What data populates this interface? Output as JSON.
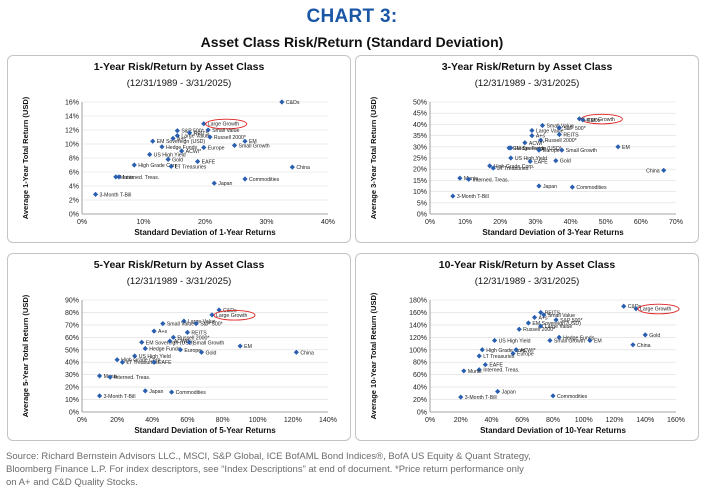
{
  "page": {
    "title": "CHART 3:",
    "subtitle": "Asset Class Risk/Return (Standard Deviation)"
  },
  "colors": {
    "marker": "#2a5fb0",
    "highlight": "#e02020",
    "title": "#1a56a6"
  },
  "chart_data": [
    {
      "type": "scatter",
      "title": "1-Year Risk/Return by Asset Class",
      "subtitle": "(12/31/1989 - 3/31/2025)",
      "xlabel": "Standard Deviation of  1-Year Returns",
      "ylabel": "Average 1-Year Total Return (USD)",
      "xlim": [
        0,
        40
      ],
      "ylim": [
        0,
        16
      ],
      "xticks": [
        "0%",
        "10%",
        "20%",
        "30%",
        "40%"
      ],
      "yticks": [
        "0%",
        "2%",
        "4%",
        "6%",
        "8%",
        "10%",
        "12%",
        "14%",
        "16%"
      ],
      "highlight": "Large Growth",
      "points": [
        {
          "label": "C&Ds",
          "x": 32.5,
          "y": 16.0
        },
        {
          "label": "Large Growth",
          "x": 19.8,
          "y": 12.9
        },
        {
          "label": "S&P 500*",
          "x": 15.5,
          "y": 11.9
        },
        {
          "label": "Small Value",
          "x": 20.5,
          "y": 12.0
        },
        {
          "label": "REITS",
          "x": 17.5,
          "y": 11.6
        },
        {
          "label": "Large Value",
          "x": 15.5,
          "y": 11.2
        },
        {
          "label": "A+s",
          "x": 14.8,
          "y": 10.8
        },
        {
          "label": "Russell 2000*",
          "x": 20.8,
          "y": 11.0
        },
        {
          "label": "EM Sovereign (USD)",
          "x": 11.5,
          "y": 10.4
        },
        {
          "label": "EM",
          "x": 26.5,
          "y": 10.4
        },
        {
          "label": "Hedge Funds",
          "x": 13.0,
          "y": 9.6
        },
        {
          "label": "Europe",
          "x": 19.8,
          "y": 9.5
        },
        {
          "label": "Small Growth",
          "x": 24.8,
          "y": 9.8
        },
        {
          "label": "ACWI*",
          "x": 16.2,
          "y": 9.0
        },
        {
          "label": "US High Yield",
          "x": 11.0,
          "y": 8.5
        },
        {
          "label": "Gold",
          "x": 14.0,
          "y": 7.8
        },
        {
          "label": "EAFE",
          "x": 18.8,
          "y": 7.5
        },
        {
          "label": "High Grade Corp.",
          "x": 8.5,
          "y": 7.0
        },
        {
          "label": "LT Treasuries",
          "x": 14.5,
          "y": 6.8
        },
        {
          "label": "China",
          "x": 34.2,
          "y": 6.7
        },
        {
          "label": "Munis",
          "x": 5.5,
          "y": 5.3
        },
        {
          "label": "Interned. Treas.",
          "x": 6.0,
          "y": 5.3
        },
        {
          "label": "Commodities",
          "x": 26.5,
          "y": 5.0
        },
        {
          "label": "Japan",
          "x": 21.5,
          "y": 4.4
        },
        {
          "label": "3-Month T-Bill",
          "x": 2.2,
          "y": 2.8
        }
      ]
    },
    {
      "type": "scatter",
      "title": "3-Year Risk/Return by Asset Class",
      "subtitle": "(12/31/1989 - 3/31/2025)",
      "xlabel": "Standard Deviation of  3-Year Returns",
      "ylabel": "Average 3-Year Total Return (USD)",
      "xlim": [
        0,
        70
      ],
      "ylim": [
        0,
        50
      ],
      "xticks": [
        "0%",
        "10%",
        "20%",
        "30%",
        "40%",
        "50%",
        "60%",
        "70%"
      ],
      "yticks": [
        "0%",
        "5%",
        "10%",
        "15%",
        "20%",
        "25%",
        "30%",
        "35%",
        "40%",
        "45%",
        "50%"
      ],
      "highlight": "Large Growth",
      "points": [
        {
          "label": "Large Growth",
          "x": 42.5,
          "y": 42.5
        },
        {
          "label": "C&Ds",
          "x": 43.5,
          "y": 42.0
        },
        {
          "label": "Small Value",
          "x": 32.0,
          "y": 39.5
        },
        {
          "label": "S&P 500*",
          "x": 36.8,
          "y": 38.5
        },
        {
          "label": "Large Value",
          "x": 29.0,
          "y": 37.3
        },
        {
          "label": "A+s",
          "x": 29.0,
          "y": 35.0
        },
        {
          "label": "REITS",
          "x": 36.8,
          "y": 35.5
        },
        {
          "label": "Russell 2000*",
          "x": 31.5,
          "y": 33.0
        },
        {
          "label": "ACWI*",
          "x": 27.0,
          "y": 31.8
        },
        {
          "label": "EM Sovereign (USD)",
          "x": 22.5,
          "y": 29.5
        },
        {
          "label": "Hedge Funds",
          "x": 23.0,
          "y": 29.5
        },
        {
          "label": "Europe",
          "x": 31.0,
          "y": 28.5
        },
        {
          "label": "EM",
          "x": 53.5,
          "y": 30.0
        },
        {
          "label": "Small Growth",
          "x": 37.5,
          "y": 28.5
        },
        {
          "label": "US High Yield",
          "x": 23.0,
          "y": 25.0
        },
        {
          "label": "Gold",
          "x": 35.8,
          "y": 23.8
        },
        {
          "label": "EAFE",
          "x": 28.5,
          "y": 23.5
        },
        {
          "label": "High Grade Corp.",
          "x": 17.0,
          "y": 21.5
        },
        {
          "label": "LT Treasuries",
          "x": 18.0,
          "y": 20.5
        },
        {
          "label": "China",
          "x": 66.5,
          "y": 19.5
        },
        {
          "label": "Munis",
          "x": 8.5,
          "y": 16.0
        },
        {
          "label": "Interned. Treas.",
          "x": 11.0,
          "y": 15.5
        },
        {
          "label": "Japan",
          "x": 31.0,
          "y": 12.5
        },
        {
          "label": "Commodities",
          "x": 40.5,
          "y": 12.0
        },
        {
          "label": "3-Month T-Bill",
          "x": 6.5,
          "y": 8.0
        }
      ]
    },
    {
      "type": "scatter",
      "title": "5-Year Risk/Return by Asset Class",
      "subtitle": "(12/31/1989 - 3/31/2025)",
      "xlabel": "Standard Deviation of 5-Year Returns",
      "ylabel": "Average 5-Year Total Return (USD)",
      "xlim": [
        0,
        140
      ],
      "ylim": [
        0,
        90
      ],
      "xticks": [
        "0%",
        "20%",
        "40%",
        "60%",
        "80%",
        "100%",
        "120%",
        "140%"
      ],
      "yticks": [
        "0%",
        "10%",
        "20%",
        "30%",
        "40%",
        "50%",
        "60%",
        "70%",
        "80%",
        "90%"
      ],
      "highlight": "Large Growth",
      "points": [
        {
          "label": "C&Ds",
          "x": 78.0,
          "y": 82.0
        },
        {
          "label": "Large Growth",
          "x": 74.0,
          "y": 78.0
        },
        {
          "label": "Large Value",
          "x": 58.0,
          "y": 73.0
        },
        {
          "label": "Small Value",
          "x": 46.0,
          "y": 71.0
        },
        {
          "label": "S&P 500*",
          "x": 65.0,
          "y": 71.0
        },
        {
          "label": "A+s",
          "x": 41.0,
          "y": 65.0
        },
        {
          "label": "REITS",
          "x": 60.0,
          "y": 64.0
        },
        {
          "label": "Russell 2000*",
          "x": 52.0,
          "y": 60.0
        },
        {
          "label": "EM Sovereign (USD)",
          "x": 34.0,
          "y": 56.0
        },
        {
          "label": "ACWI*",
          "x": 50.0,
          "y": 57.0
        },
        {
          "label": "Small Growth",
          "x": 61.0,
          "y": 56.0
        },
        {
          "label": "Hedge Funds",
          "x": 36.0,
          "y": 51.0
        },
        {
          "label": "EM",
          "x": 90.0,
          "y": 53.0
        },
        {
          "label": "Europe",
          "x": 56.0,
          "y": 50.0
        },
        {
          "label": "Gold",
          "x": 68.0,
          "y": 48.0
        },
        {
          "label": "China",
          "x": 122.0,
          "y": 48.0
        },
        {
          "label": "US High Yield",
          "x": 30.0,
          "y": 45.0
        },
        {
          "label": "High Grade Corp.",
          "x": 20.0,
          "y": 42.0
        },
        {
          "label": "LT Treasuries",
          "x": 23.0,
          "y": 40.0
        },
        {
          "label": "EAFE",
          "x": 41.0,
          "y": 40.0
        },
        {
          "label": "Munis",
          "x": 10.0,
          "y": 29.0
        },
        {
          "label": "Interned. Treas.",
          "x": 16.0,
          "y": 28.0
        },
        {
          "label": "Japan",
          "x": 36.0,
          "y": 17.0
        },
        {
          "label": "Commodities",
          "x": 51.0,
          "y": 16.0
        },
        {
          "label": "3-Month T-Bill",
          "x": 10.0,
          "y": 13.0
        }
      ]
    },
    {
      "type": "scatter",
      "title": "10-Year Risk/Return by Asset Class",
      "subtitle": "(12/31/1989 - 3/31/2025)",
      "xlabel": "Standard Deviation of 10-Year Returns",
      "ylabel": "Average 10-Year Total Return (USD)",
      "xlim": [
        0,
        160
      ],
      "ylim": [
        0,
        180
      ],
      "xticks": [
        "0%",
        "20%",
        "40%",
        "60%",
        "80%",
        "100%",
        "120%",
        "140%",
        "160%"
      ],
      "yticks": [
        "0%",
        "20%",
        "40%",
        "60%",
        "80%",
        "100%",
        "120%",
        "140%",
        "160%",
        "180%"
      ],
      "highlight": "Large Growth",
      "points": [
        {
          "label": "C&Ds",
          "x": 126.0,
          "y": 170.0
        },
        {
          "label": "Large Growth",
          "x": 134.0,
          "y": 166.0
        },
        {
          "label": "REITS",
          "x": 72.0,
          "y": 160.0
        },
        {
          "label": "Small Value",
          "x": 74.0,
          "y": 156.0
        },
        {
          "label": "A+s",
          "x": 68.0,
          "y": 152.0
        },
        {
          "label": "S&P 500*",
          "x": 82.0,
          "y": 148.0
        },
        {
          "label": "EM Sovereign (USD)",
          "x": 64.0,
          "y": 143.0
        },
        {
          "label": "Large Value",
          "x": 72.0,
          "y": 138.0
        },
        {
          "label": "Russell 2000*",
          "x": 58.0,
          "y": 133.0
        },
        {
          "label": "Hedge Funds",
          "x": 84.0,
          "y": 120.0
        },
        {
          "label": "Gold",
          "x": 140.0,
          "y": 124.0
        },
        {
          "label": "US High Yield",
          "x": 42.0,
          "y": 115.0
        },
        {
          "label": "Small Growth",
          "x": 78.0,
          "y": 115.0
        },
        {
          "label": "EM",
          "x": 104.0,
          "y": 115.0
        },
        {
          "label": "China",
          "x": 132.0,
          "y": 108.0
        },
        {
          "label": "High Grade Corp.",
          "x": 34.0,
          "y": 100.0
        },
        {
          "label": "ACWI*",
          "x": 56.0,
          "y": 100.0
        },
        {
          "label": "Europe",
          "x": 54.0,
          "y": 94.0
        },
        {
          "label": "LT Treasuries",
          "x": 32.0,
          "y": 90.0
        },
        {
          "label": "EAFE",
          "x": 36.0,
          "y": 76.0
        },
        {
          "label": "Interned. Treas.",
          "x": 32.0,
          "y": 68.0
        },
        {
          "label": "Munis",
          "x": 22.0,
          "y": 66.0
        },
        {
          "label": "Japan",
          "x": 44.0,
          "y": 33.0
        },
        {
          "label": "Commodities",
          "x": 80.0,
          "y": 26.0
        },
        {
          "label": "3-Month T-Bill",
          "x": 20.0,
          "y": 24.0
        }
      ]
    }
  ],
  "footer": {
    "line1": "Source: Richard Bernstein Advisors LLC., MSCI, S&P Global, ICE BofAML Bond Indices®, BofA US Equity & Quant Strategy,",
    "line2": "Bloomberg Finance L.P. For index descriptors, see “Index Descriptions” at end of document. *Price return performance only",
    "line3": "on A+ and C&D Quality Stocks."
  }
}
